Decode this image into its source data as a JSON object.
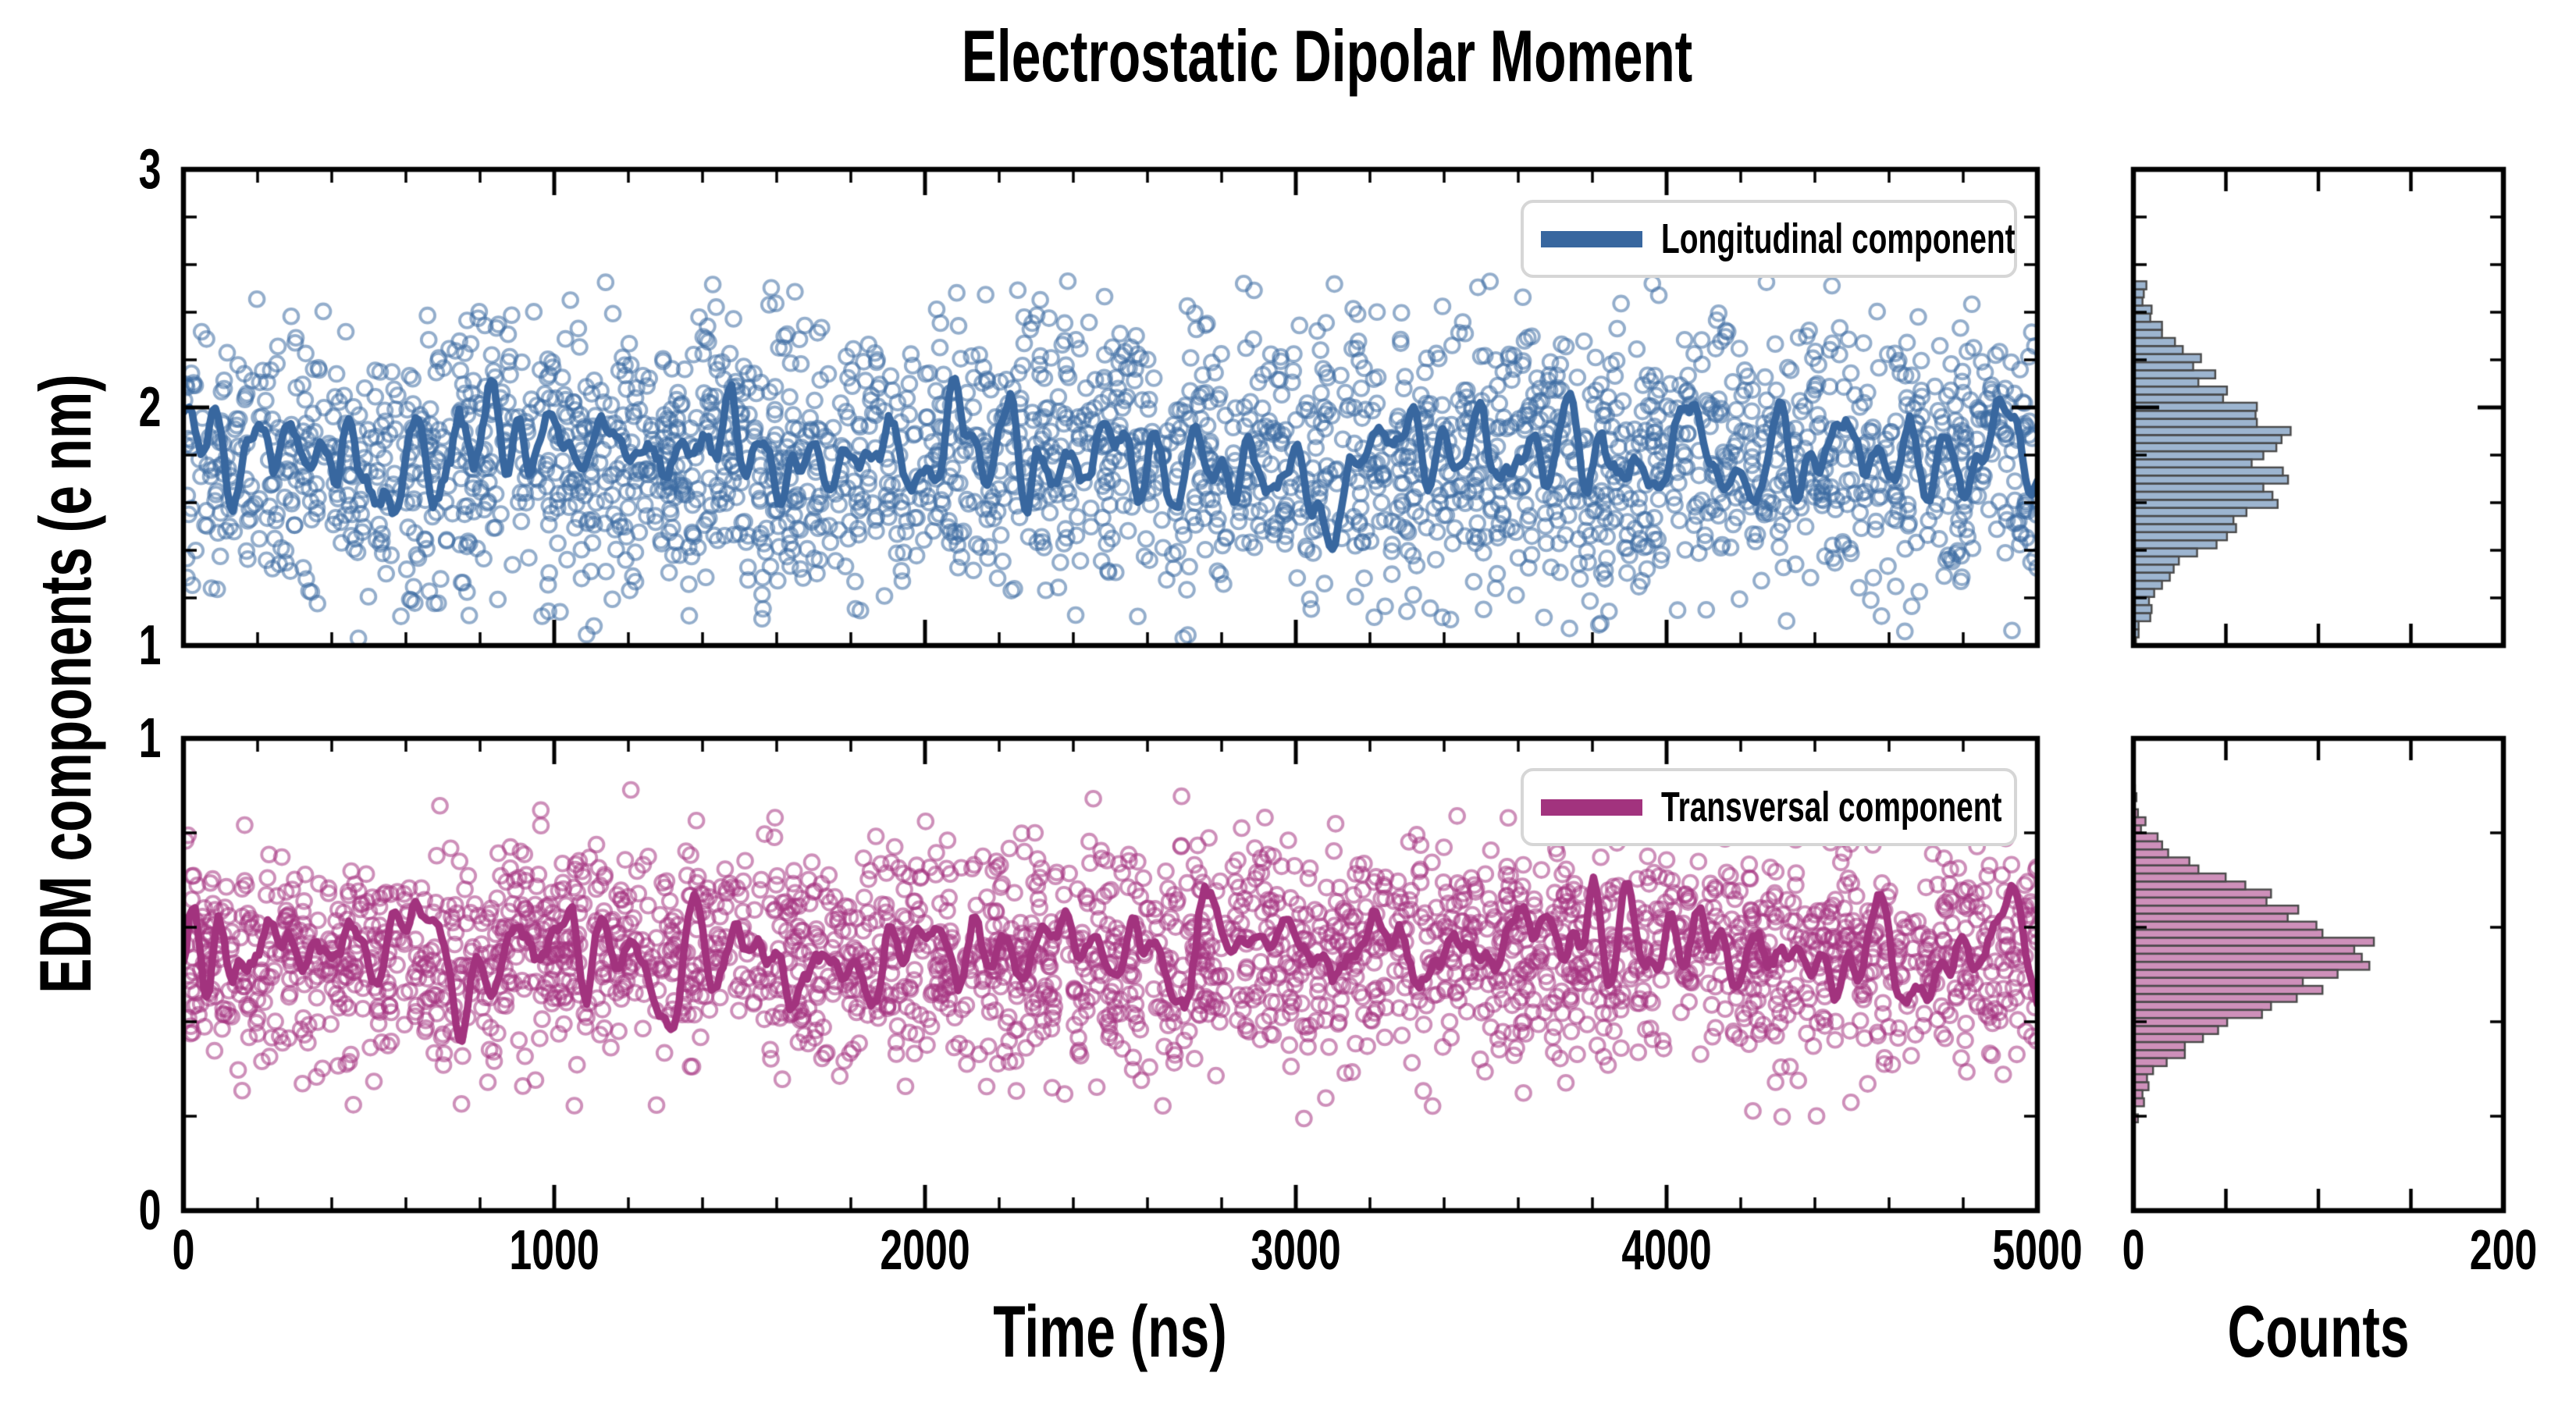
{
  "chart_data": {
    "type": "scatter",
    "title": "Electrostatic Dipolar Moment",
    "xlabel": "Time (ns)",
    "ylabel": "EDM components (e nm)",
    "hist_xlabel": "Counts",
    "xlim": [
      0,
      5000
    ],
    "xticks": [
      0,
      1000,
      2000,
      3000,
      4000,
      5000
    ],
    "x_minor_step": 200,
    "y_minor_step": 0.2,
    "counts_xlim": [
      0,
      200
    ],
    "counts_tick_labels": [
      0,
      200
    ],
    "counts_tick_step": 50,
    "grid": false,
    "legend_position": "upper right",
    "axes_edge_color": "#000000",
    "hist_edge_color": "#4a4a4a",
    "panels": [
      {
        "name": "longitudinal",
        "legend": "Longitudinal component",
        "marker": "open-circle",
        "line_color": "#38679f",
        "scatter_color": "rgba(60,107,162,0.55)",
        "hist_fill": "rgba(60,107,162,0.5)",
        "ylim": [
          1,
          3
        ],
        "yticks": [
          1,
          2,
          3
        ],
        "n_points": 2500,
        "scatter_mean": 1.78,
        "scatter_std": 0.3,
        "scatter_range": [
          1.03,
          2.58
        ],
        "line_mean": 1.78,
        "line_fluctuation": 0.1,
        "hist_bin_width": 0.034,
        "hist_peak_count": 85,
        "seed": 20240
      },
      {
        "name": "transversal",
        "legend": "Transversal component",
        "marker": "open-circle",
        "line_color": "#a2337e",
        "scatter_color": "rgba(165,52,129,0.55)",
        "hist_fill": "rgba(165,52,129,0.55)",
        "ylim": [
          0,
          1
        ],
        "yticks": [
          0,
          1
        ],
        "n_points": 2500,
        "scatter_mean": 0.545,
        "scatter_std": 0.115,
        "scatter_range": [
          0.18,
          0.92
        ],
        "line_mean": 0.545,
        "line_fluctuation": 0.05,
        "hist_bin_width": 0.017,
        "hist_peak_count": 130,
        "seed": 9157
      }
    ]
  }
}
